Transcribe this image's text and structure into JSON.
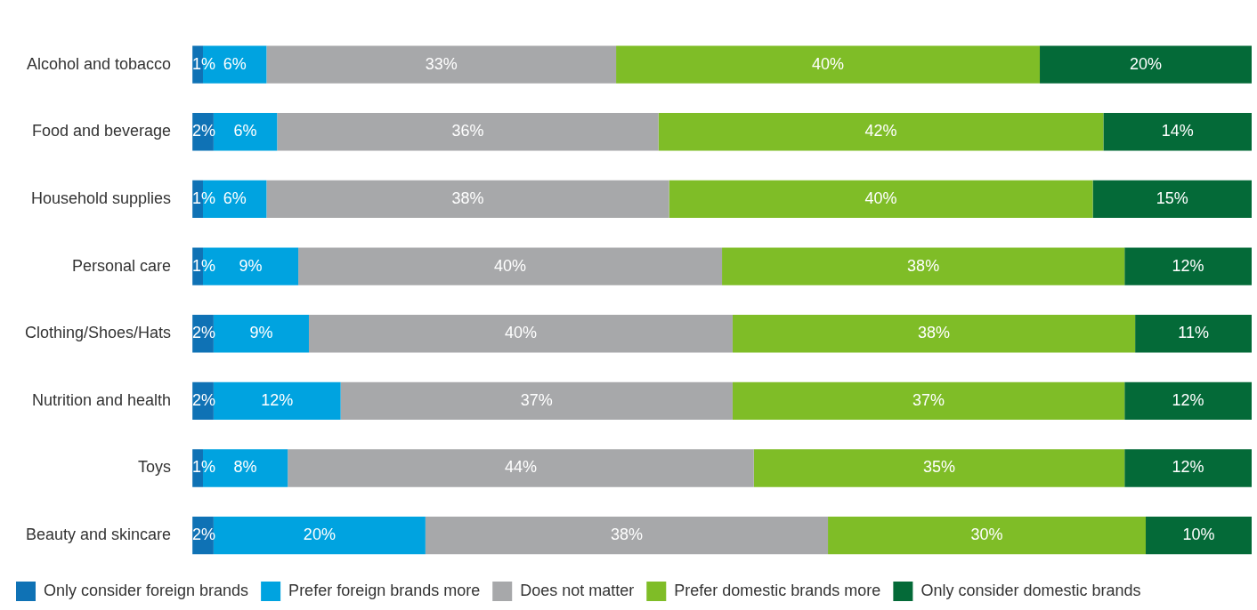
{
  "chart_data": {
    "type": "bar",
    "orientation": "horizontal",
    "stacked": true,
    "legend": "bottom",
    "tick_labels": "y",
    "xlim": [
      0,
      100
    ],
    "categories": [
      "Alcohol and tobacco",
      "Food and beverage",
      "Household supplies",
      "Personal care",
      "Clothing/Shoes/Hats",
      "Nutrition and health",
      "Toys",
      "Beauty and skincare"
    ],
    "series": [
      {
        "name": "Only consider foreign brands",
        "color": "#0f72b5",
        "values": [
          1,
          2,
          1,
          1,
          2,
          2,
          1,
          2
        ],
        "value_labels": [
          "1%",
          "2%",
          "1%",
          "1%",
          "2%",
          "2%",
          "1%",
          "2%"
        ]
      },
      {
        "name": "Prefer foreign brands more",
        "color": "#00a3e0",
        "values": [
          6,
          6,
          6,
          9,
          9,
          12,
          8,
          20
        ],
        "value_labels": [
          "6%",
          "6%",
          "6%",
          "9%",
          "9%",
          "12%",
          "8%",
          "20%"
        ]
      },
      {
        "name": "Does not matter",
        "color": "#a7a8aa",
        "values": [
          33,
          36,
          38,
          40,
          40,
          37,
          44,
          38
        ],
        "value_labels": [
          "33%",
          "36%",
          "38%",
          "40%",
          "40%",
          "37%",
          "44%",
          "38%"
        ]
      },
      {
        "name": "Prefer domestic brands more",
        "color": "#7fbd27",
        "values": [
          40,
          42,
          40,
          38,
          38,
          37,
          35,
          30
        ],
        "value_labels": [
          "40%",
          "42%",
          "40%",
          "38%",
          "38%",
          "37%",
          "35%",
          "30%"
        ]
      },
      {
        "name": "Only consider domestic brands",
        "color": "#046a38",
        "values": [
          20,
          14,
          15,
          12,
          11,
          12,
          12,
          10
        ],
        "value_labels": [
          "20%",
          "14%",
          "15%",
          "12%",
          "11%",
          "12%",
          "12%",
          "10%"
        ]
      }
    ]
  }
}
